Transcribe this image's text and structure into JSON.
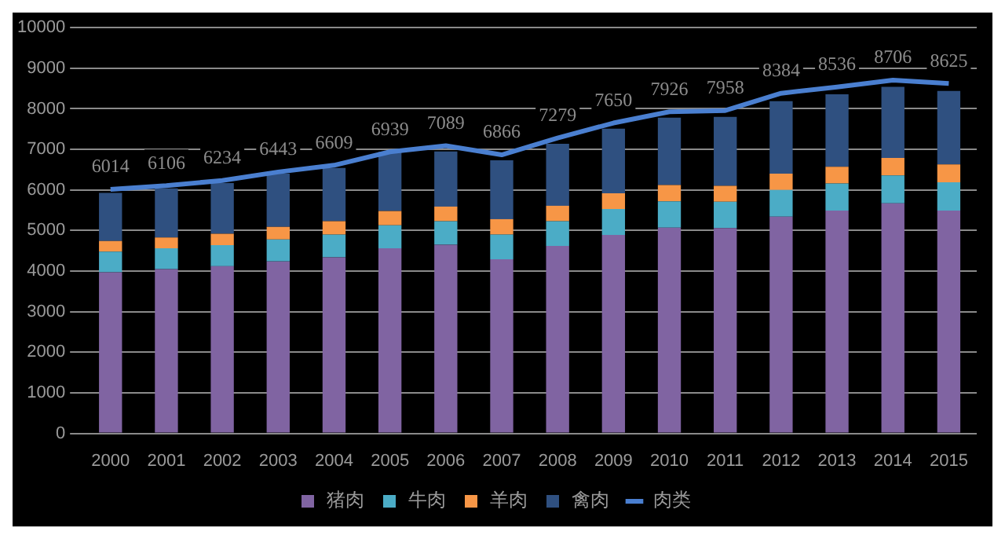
{
  "chart_data": {
    "type": "bar",
    "stacked": true,
    "categories": [
      "2000",
      "2001",
      "2002",
      "2003",
      "2004",
      "2005",
      "2006",
      "2007",
      "2008",
      "2009",
      "2010",
      "2011",
      "2012",
      "2013",
      "2014",
      "2015"
    ],
    "series": [
      {
        "name": "猪肉",
        "color": "#8064a2",
        "values": [
          3970,
          4050,
          4120,
          4240,
          4340,
          4560,
          4650,
          4290,
          4620,
          4890,
          5070,
          5060,
          5340,
          5490,
          5670,
          5490
        ]
      },
      {
        "name": "牛肉",
        "color": "#4bacc6",
        "values": [
          510,
          510,
          520,
          540,
          560,
          570,
          580,
          610,
          610,
          640,
          650,
          650,
          660,
          670,
          690,
          700
        ]
      },
      {
        "name": "羊肉",
        "color": "#f79646",
        "values": [
          260,
          270,
          280,
          310,
          330,
          350,
          360,
          380,
          380,
          390,
          400,
          390,
          400,
          410,
          430,
          440
        ]
      },
      {
        "name": "禽肉",
        "color": "#2f5080",
        "values": [
          1190,
          1210,
          1250,
          1310,
          1310,
          1460,
          1360,
          1450,
          1530,
          1590,
          1660,
          1700,
          1790,
          1790,
          1750,
          1810
        ]
      },
      {
        "name": "肉类",
        "type": "line",
        "color": "#4a7fd0",
        "data_labels": true,
        "values": [
          6014,
          6106,
          6234,
          6443,
          6609,
          6939,
          7089,
          6866,
          7279,
          7650,
          7926,
          7958,
          8384,
          8536,
          8706,
          8625
        ]
      }
    ],
    "ylim": [
      0,
      10000
    ],
    "yticks": [
      0,
      1000,
      2000,
      3000,
      4000,
      5000,
      6000,
      7000,
      8000,
      9000,
      10000
    ],
    "grid": "y",
    "legend": "bottom",
    "marker": "none"
  }
}
